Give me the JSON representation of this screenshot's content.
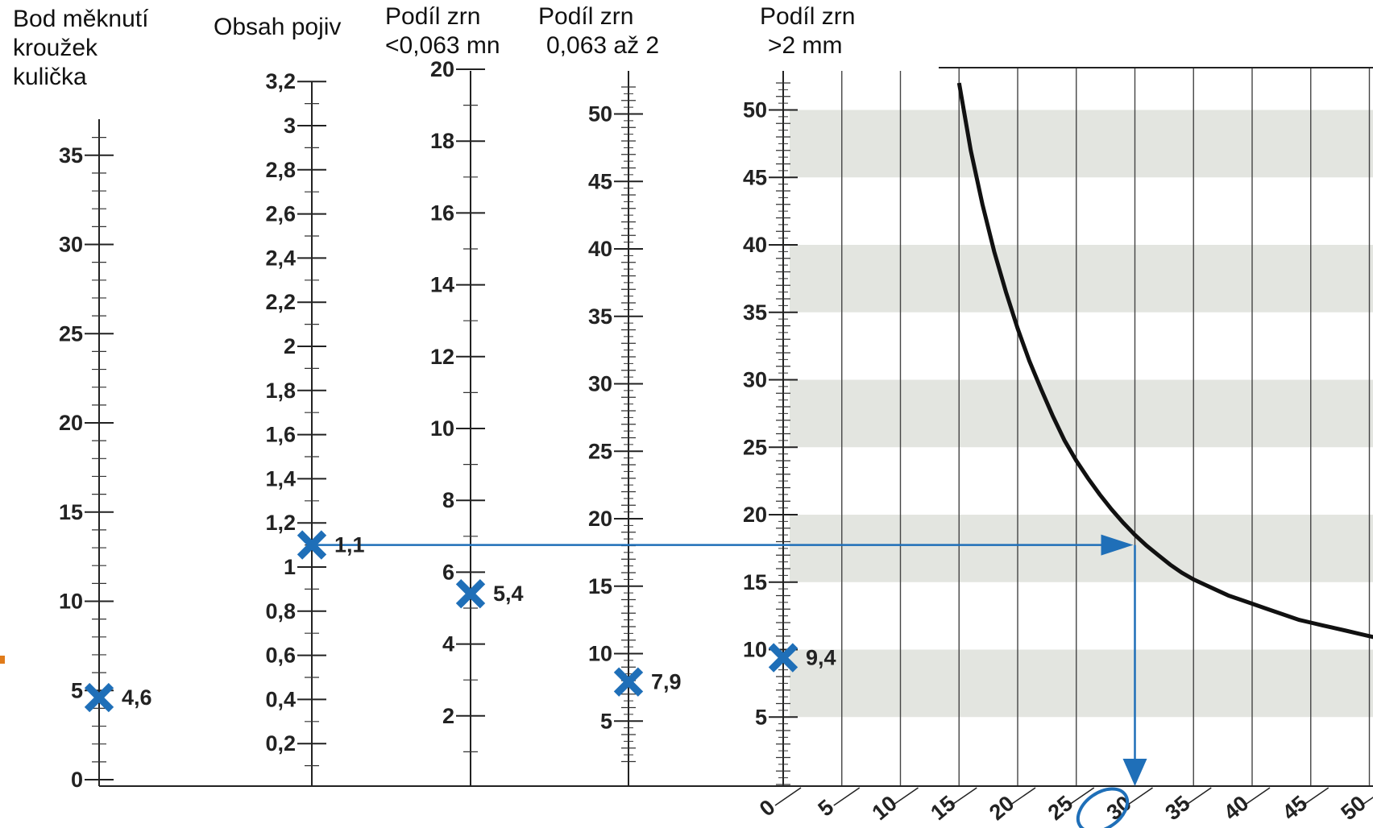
{
  "chart_data": {
    "type": "nomogram",
    "title": "",
    "accent_color": "#1f6fb8",
    "axes": [
      {
        "id": "bod_meknuti",
        "title": [
          "Bod měknutí",
          "kroužek",
          "kulička"
        ],
        "min": 0,
        "max": 36,
        "labeled_ticks": [
          0,
          5,
          10,
          15,
          20,
          25,
          30,
          35
        ],
        "minor_step": 1,
        "tick_labels": [
          "0",
          "5",
          "10",
          "15",
          "20",
          "25",
          "30",
          "35"
        ],
        "marker": {
          "value": 4.6,
          "label": "4,6"
        }
      },
      {
        "id": "obsah_pojiv",
        "title": [
          "Obsah pojiv"
        ],
        "min": 0.1,
        "max": 3.2,
        "labeled_ticks": [
          0.2,
          0.4,
          0.6,
          0.8,
          1,
          1.2,
          1.4,
          1.6,
          1.8,
          2,
          2.2,
          2.4,
          2.6,
          2.8,
          3,
          3.2
        ],
        "minor_step": 0.1,
        "tick_labels": [
          "0,2",
          "0,4",
          "0,6",
          "0,8",
          "1",
          "1,2",
          "1,4",
          "1,6",
          "1,8",
          "2",
          "2,2",
          "2,4",
          "2,6",
          "2,8",
          "3",
          "3,2"
        ],
        "marker": {
          "value": 1.1,
          "label": "1,1"
        }
      },
      {
        "id": "podil_jemne",
        "title": [
          "Podíl zrn",
          "<0,063 mn"
        ],
        "min": 1,
        "max": 20,
        "labeled_ticks": [
          2,
          4,
          6,
          8,
          10,
          12,
          14,
          16,
          18,
          20
        ],
        "minor_step": 1,
        "tick_labels": [
          "2",
          "4",
          "6",
          "8",
          "10",
          "12",
          "14",
          "16",
          "18",
          "20"
        ],
        "marker": {
          "value": 5.4,
          "label": "5,4"
        }
      },
      {
        "id": "podil_stredni",
        "title": [
          "Podíl zrn",
          "0,063 až 2"
        ],
        "min": 2,
        "max": 52,
        "labeled_ticks": [
          5,
          10,
          15,
          20,
          25,
          30,
          35,
          40,
          45,
          50
        ],
        "minor_step": 1,
        "tick_labels": [
          "5",
          "10",
          "15",
          "20",
          "25",
          "30",
          "35",
          "40",
          "45",
          "50"
        ],
        "marker": {
          "value": 7.9,
          "label": "7,9"
        }
      },
      {
        "id": "podil_hrube",
        "title": [
          "Podíl zrn",
          ">2 mm"
        ],
        "min": 0,
        "max": 52,
        "labeled_ticks": [
          5,
          10,
          15,
          20,
          25,
          30,
          35,
          40,
          45,
          50
        ],
        "minor_step": 1,
        "tick_labels": [
          "5",
          "10",
          "15",
          "20",
          "25",
          "30",
          "35",
          "40",
          "45",
          "50"
        ],
        "marker": {
          "value": 9.4,
          "label": "9,4"
        }
      }
    ],
    "result_grid": {
      "x_ticks": [
        0,
        5,
        10,
        15,
        20,
        25,
        30,
        35,
        40,
        45,
        50
      ],
      "x_tick_labels": [
        "0",
        "5",
        "10",
        "15",
        "20",
        "25",
        "30",
        "35",
        "40",
        "45",
        "50"
      ],
      "shaded_bands": [
        [
          5,
          10
        ],
        [
          15,
          20
        ],
        [
          25,
          30
        ],
        [
          35,
          40
        ],
        [
          45,
          50
        ]
      ],
      "curve": {
        "x": [
          15.0,
          16.0,
          17.0,
          18.0,
          19.0,
          20.0,
          21.0,
          22.0,
          23.0,
          24.0,
          25.0,
          26.0,
          27.0,
          28.0,
          29.0,
          30.0,
          31.0,
          32.0,
          33.0,
          34.0,
          35.0,
          36.0,
          37.0,
          38.0,
          39.0,
          40.0,
          41.0,
          42.0,
          43.0,
          44.0,
          45.0,
          46.0,
          47.0,
          48.0,
          49.0,
          50.0,
          51.0,
          52.0,
          53.0
        ],
        "y": [
          52.0,
          47.0,
          43.0,
          39.5,
          36.5,
          33.8,
          31.4,
          29.3,
          27.3,
          25.5,
          24.0,
          22.7,
          21.5,
          20.4,
          19.4,
          18.5,
          17.7,
          17.0,
          16.3,
          15.7,
          15.2,
          14.8,
          14.4,
          14.0,
          13.7,
          13.4,
          13.1,
          12.8,
          12.5,
          12.2,
          12.0,
          11.8,
          11.6,
          11.4,
          11.2,
          11.0,
          10.8,
          10.5,
          10.2
        ]
      },
      "result": {
        "value": 30,
        "label": "30"
      },
      "arrow_y": 18.5
    }
  }
}
